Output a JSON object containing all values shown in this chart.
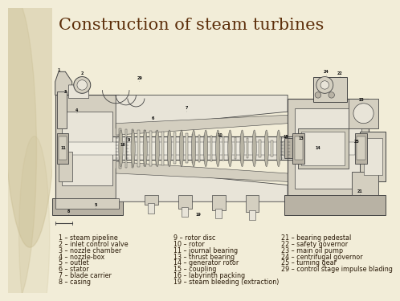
{
  "title": "Construction of steam turbines",
  "title_color": "#5c2e0a",
  "title_fontsize": 15,
  "bg_color": "#f2edd8",
  "left_panel_color": "#e0d4a8",
  "left_col": [
    "1 – steam pipeline",
    "2 – inlet control valve",
    "3 – nozzle chamber",
    "4 – nozzle-box",
    "5 – outlet",
    "6 – stator",
    "7 – blade carrier",
    "8 – casing"
  ],
  "mid_col": [
    "9 – rotor disc",
    "10 – rotor",
    "11 – journal bearing",
    "13 – thrust bearing",
    "14 – generator rotor",
    "15 – coupling",
    "16 – labyrinth packing",
    "19 – steam bleeding (extraction)"
  ],
  "right_col": [
    "21 – bearing pedestal",
    "22 – safety governor",
    "23 – main oil pump",
    "24 – centrifugal governor",
    "25 – turning gear",
    "29 – control stage impulse blading",
    "",
    ""
  ],
  "text_color": "#2a1a08",
  "label_fontsize": 5.8,
  "diagram_line_color": "#444444",
  "diagram_bg": "#f8f6ef",
  "diagram_fill_light": "#e8e4d8",
  "diagram_fill_mid": "#d4cfc0",
  "diagram_fill_dark": "#b8b2a4"
}
